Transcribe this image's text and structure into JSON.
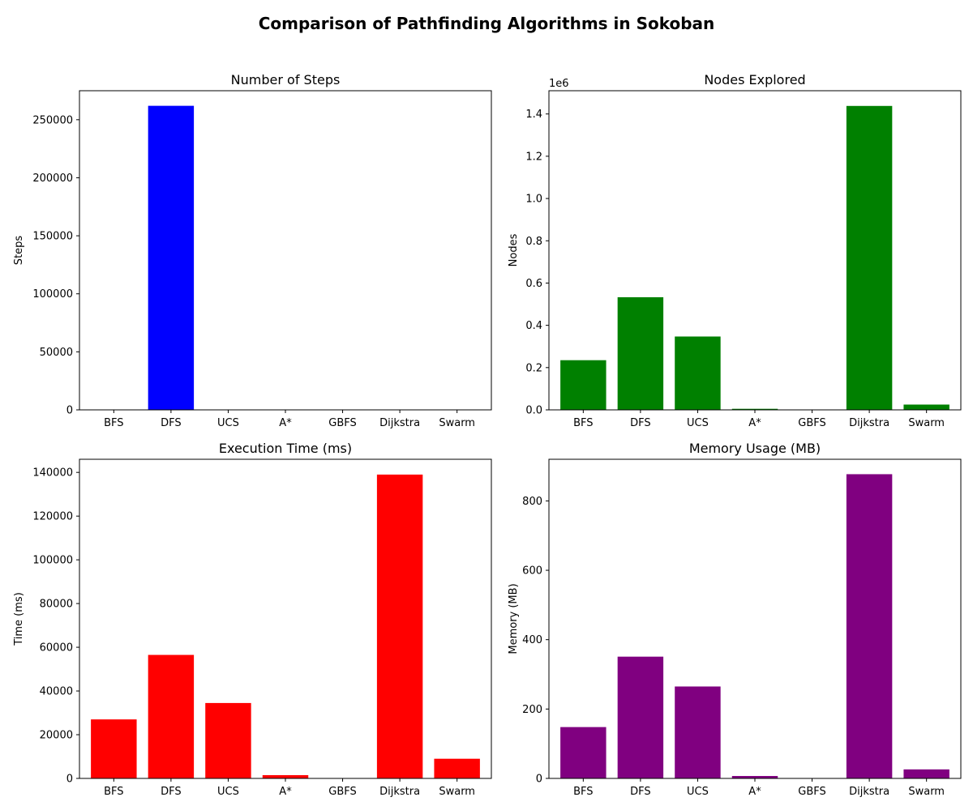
{
  "figure": {
    "suptitle": "Comparison of Pathfinding Algorithms in Sokoban"
  },
  "chart_data": [
    {
      "type": "bar",
      "title": "Number of Steps",
      "xlabel": "",
      "ylabel": "Steps",
      "categories": [
        "BFS",
        "DFS",
        "UCS",
        "A*",
        "GBFS",
        "Dijkstra",
        "Swarm"
      ],
      "values": [
        60,
        262000,
        60,
        60,
        0,
        60,
        60
      ],
      "color": "#0000ff",
      "ylim": [
        0,
        275000
      ],
      "yticks": [
        0,
        50000,
        100000,
        150000,
        200000,
        250000
      ],
      "ytick_labels": [
        "0",
        "50000",
        "100000",
        "150000",
        "200000",
        "250000"
      ],
      "offset_label": "",
      "grid": false
    },
    {
      "type": "bar",
      "title": "Nodes Explored",
      "xlabel": "",
      "ylabel": "Nodes",
      "categories": [
        "BFS",
        "DFS",
        "UCS",
        "A*",
        "GBFS",
        "Dijkstra",
        "Swarm"
      ],
      "values": [
        235000,
        533000,
        347000,
        5000,
        500,
        1438000,
        25000
      ],
      "color": "#008000",
      "ylim": [
        0,
        1510000
      ],
      "yticks": [
        0,
        200000,
        400000,
        600000,
        800000,
        1000000,
        1200000,
        1400000
      ],
      "ytick_labels": [
        "0.0",
        "0.2",
        "0.4",
        "0.6",
        "0.8",
        "1.0",
        "1.2",
        "1.4"
      ],
      "offset_label": "1e6",
      "grid": false
    },
    {
      "type": "bar",
      "title": "Execution Time (ms)",
      "xlabel": "",
      "ylabel": "Time (ms)",
      "categories": [
        "BFS",
        "DFS",
        "UCS",
        "A*",
        "GBFS",
        "Dijkstra",
        "Swarm"
      ],
      "values": [
        27000,
        56500,
        34500,
        1500,
        100,
        139000,
        9000
      ],
      "color": "#ff0000",
      "ylim": [
        0,
        146000
      ],
      "yticks": [
        0,
        20000,
        40000,
        60000,
        80000,
        100000,
        120000,
        140000
      ],
      "ytick_labels": [
        "0",
        "20000",
        "40000",
        "60000",
        "80000",
        "100000",
        "120000",
        "140000"
      ],
      "offset_label": "",
      "grid": false
    },
    {
      "type": "bar",
      "title": "Memory Usage (MB)",
      "xlabel": "",
      "ylabel": "Memory (MB)",
      "categories": [
        "BFS",
        "DFS",
        "UCS",
        "A*",
        "GBFS",
        "Dijkstra",
        "Swarm"
      ],
      "values": [
        148,
        351,
        265,
        7,
        1,
        877,
        26
      ],
      "color": "#800080",
      "ylim": [
        0,
        920
      ],
      "yticks": [
        0,
        200,
        400,
        600,
        800
      ],
      "ytick_labels": [
        "0",
        "200",
        "400",
        "600",
        "800"
      ],
      "offset_label": "",
      "grid": false
    }
  ]
}
